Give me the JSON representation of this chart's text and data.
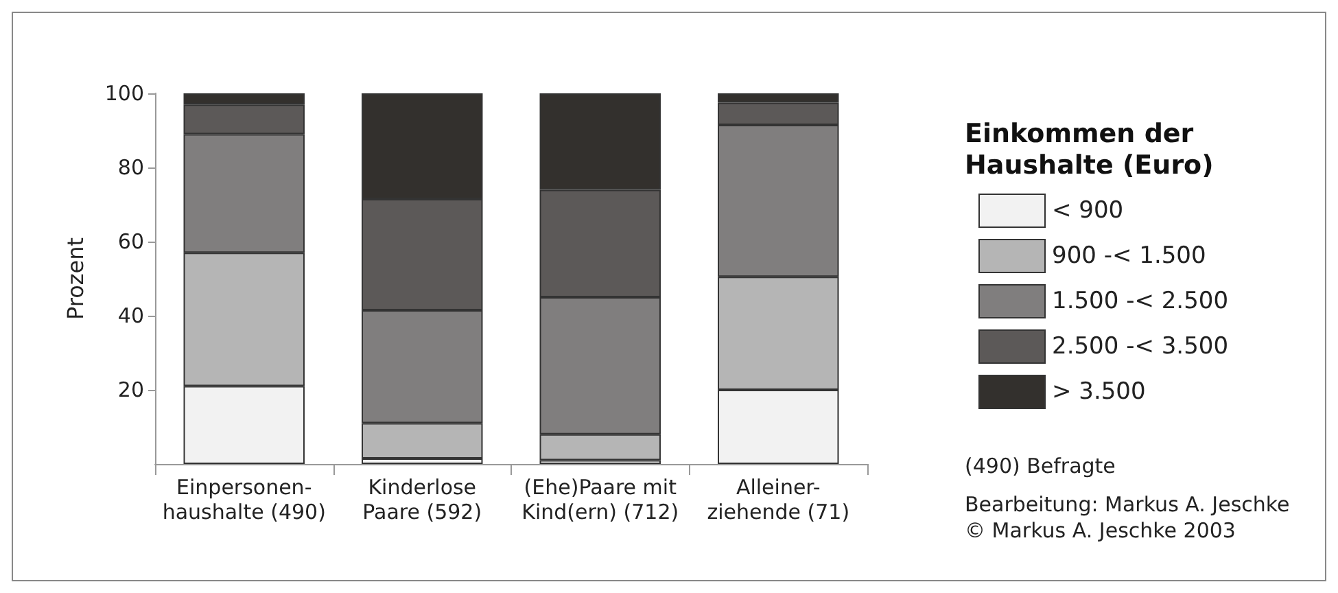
{
  "chart_data": {
    "type": "bar",
    "stacked": true,
    "ylabel": "Prozent",
    "legend_title": "Einkommen der\nHaushalte (Euro)",
    "legend": "right",
    "categories": [
      "Einpersonen-\nhaushalte (490)",
      "Kinderlose\nPaare (592)",
      "(Ehe)Paare mit\nKind(ern) (712)",
      "Alleiner-\nziehende (71)"
    ],
    "series": [
      {
        "name": "< 900",
        "color": "#f2f2f2",
        "values": [
          21,
          1.5,
          1,
          20
        ]
      },
      {
        "name": "900 -< 1.500",
        "color": "#b5b5b5",
        "values": [
          36,
          9.5,
          7,
          30.5
        ]
      },
      {
        "name": "1.500 -< 2.500",
        "color": "#807e7e",
        "values": [
          32,
          30.5,
          37,
          41
        ]
      },
      {
        "name": "2.500 -< 3.500",
        "color": "#5c5958",
        "values": [
          8,
          30,
          29,
          6
        ]
      },
      {
        "name": "> 3.500",
        "color": "#33302d",
        "values": [
          3,
          28.5,
          26,
          2.5
        ]
      }
    ],
    "ylim": [
      0,
      100
    ],
    "yticks": [
      20,
      40,
      60,
      80,
      100
    ],
    "grid": false,
    "annotations": [
      "(490) Befragte",
      "Bearbeitung: Markus A. Jeschke\n© Markus A. Jeschke 2003"
    ]
  }
}
